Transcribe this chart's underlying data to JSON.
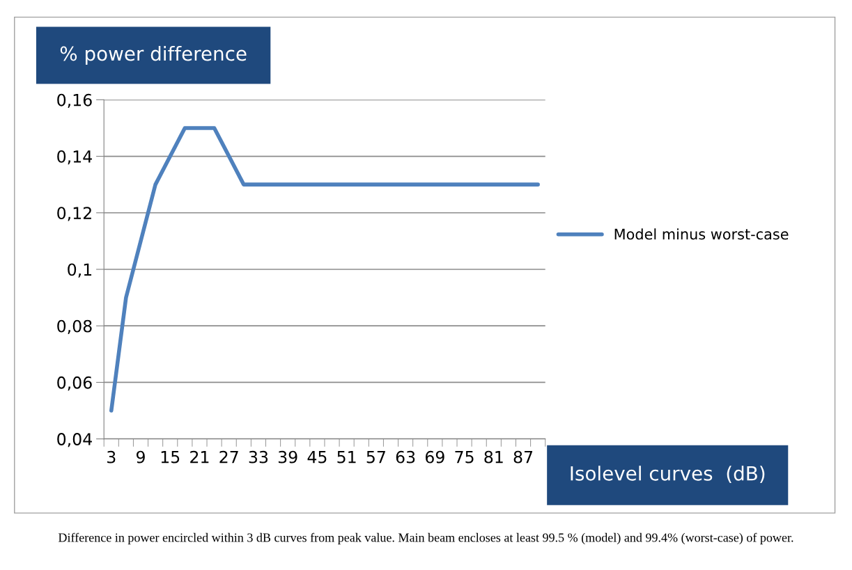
{
  "chart_data": {
    "type": "line",
    "ylabel": "% power difference",
    "xlabel": "Isolevel curves  (dB)",
    "categories": [
      "3",
      null,
      "9",
      null,
      "15",
      null,
      "21",
      null,
      "27",
      null,
      "33",
      null,
      "39",
      null,
      "45",
      null,
      "51",
      null,
      "57",
      null,
      "63",
      null,
      "69",
      null,
      "75",
      null,
      "81",
      null,
      "87",
      null
    ],
    "series": [
      {
        "name": "Model minus worst-case",
        "color": "#4f81bd",
        "values": [
          0.05,
          0.09,
          0.11,
          0.13,
          0.14,
          0.15,
          0.15,
          0.15,
          0.14,
          0.13,
          0.13,
          0.13,
          0.13,
          0.13,
          0.13,
          0.13,
          0.13,
          0.13,
          0.13,
          0.13,
          0.13,
          0.13,
          0.13,
          0.13,
          0.13,
          0.13,
          0.13,
          0.13,
          0.13,
          0.13
        ]
      }
    ],
    "ylim": [
      0.04,
      0.16
    ],
    "yticks": [
      {
        "value": 0.04,
        "label": "0,04"
      },
      {
        "value": 0.06,
        "label": "0,06"
      },
      {
        "value": 0.08,
        "label": "0,08"
      },
      {
        "value": 0.1,
        "label": "0,1"
      },
      {
        "value": 0.12,
        "label": "0,12"
      },
      {
        "value": 0.14,
        "label": "0,14"
      },
      {
        "value": 0.16,
        "label": "0,16"
      }
    ],
    "grid": "y",
    "legend": "right",
    "marker": "none",
    "line_style": "solid",
    "annotations": [
      "Difference in power encircled within 3 dB curves from peak value. Main beam encloses at least 99.5 % (model) and 99.4% (worst-case) of power."
    ]
  }
}
